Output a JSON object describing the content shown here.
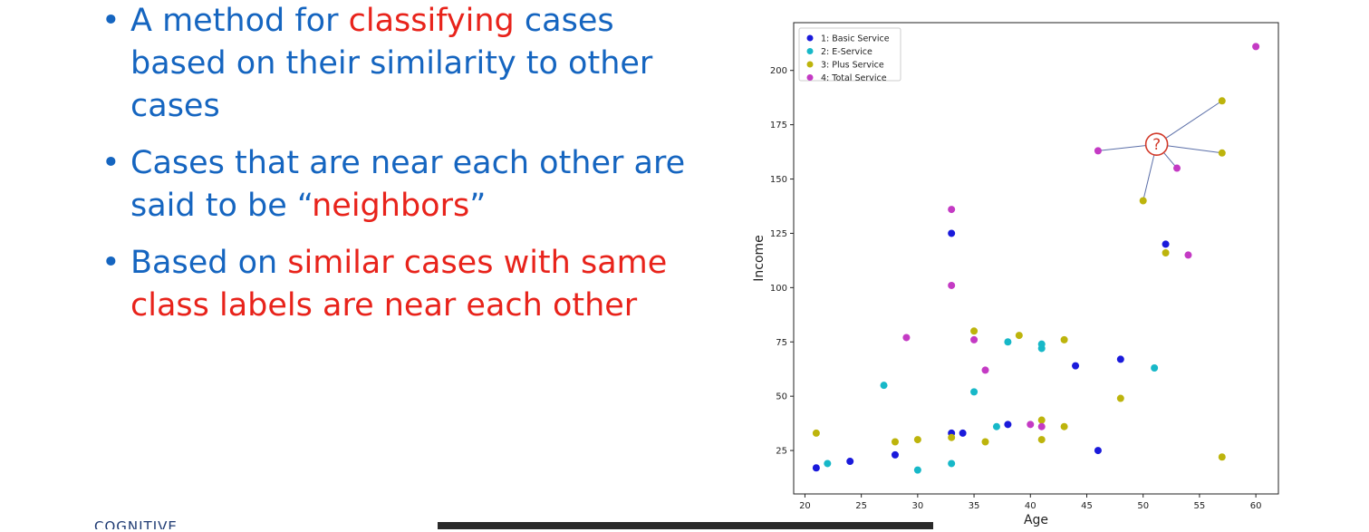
{
  "bullets": [
    {
      "parts": [
        {
          "t": "A method for ",
          "red": false
        },
        {
          "t": "classifying",
          "red": true
        },
        {
          "t": " cases based on their similarity to other cases",
          "red": false
        }
      ]
    },
    {
      "parts": [
        {
          "t": "Cases that are near each other are said to be “",
          "red": false
        },
        {
          "t": "neighbors",
          "red": true
        },
        {
          "t": "”",
          "red": false
        }
      ]
    },
    {
      "parts": [
        {
          "t": "Based on ",
          "red": false
        },
        {
          "t": "similar cases with same class labels are near each other",
          "red": true
        }
      ]
    }
  ],
  "bullet_symbol": "•",
  "logo_text": "COGNITIVE",
  "chart_data": {
    "type": "scatter",
    "xlabel": "Age",
    "ylabel": "Income",
    "xlim": [
      19,
      62
    ],
    "ylim": [
      5,
      222
    ],
    "xticks": [
      20,
      25,
      30,
      35,
      40,
      45,
      50,
      55,
      60
    ],
    "yticks": [
      25,
      50,
      75,
      100,
      125,
      150,
      175,
      200
    ],
    "legend_position": "top-left",
    "series": [
      {
        "name": "1: Basic Service",
        "color": "#1a1adb",
        "points": [
          [
            21,
            17
          ],
          [
            24,
            20
          ],
          [
            28,
            23
          ],
          [
            33,
            33
          ],
          [
            34,
            33
          ],
          [
            38,
            37
          ],
          [
            33,
            125
          ],
          [
            44,
            64
          ],
          [
            46,
            25
          ],
          [
            48,
            67
          ],
          [
            52,
            120
          ]
        ]
      },
      {
        "name": "2: E-Service",
        "color": "#17b8c8",
        "points": [
          [
            22,
            19
          ],
          [
            27,
            55
          ],
          [
            30,
            16
          ],
          [
            33,
            19
          ],
          [
            35,
            52
          ],
          [
            37,
            36
          ],
          [
            38,
            75
          ],
          [
            41,
            72
          ],
          [
            41,
            74
          ],
          [
            51,
            63
          ]
        ]
      },
      {
        "name": "3: Plus Service",
        "color": "#bdb40c",
        "points": [
          [
            21,
            33
          ],
          [
            28,
            29
          ],
          [
            30,
            30
          ],
          [
            33,
            31
          ],
          [
            35,
            80
          ],
          [
            36,
            29
          ],
          [
            39,
            78
          ],
          [
            41,
            30
          ],
          [
            41,
            39
          ],
          [
            43,
            36
          ],
          [
            43,
            76
          ],
          [
            48,
            49
          ],
          [
            50,
            140
          ],
          [
            52,
            116
          ],
          [
            57,
            162
          ],
          [
            57,
            186
          ],
          [
            57,
            22
          ]
        ]
      },
      {
        "name": "4: Total Service",
        "color": "#c43ac4",
        "points": [
          [
            29,
            77
          ],
          [
            33,
            136
          ],
          [
            33,
            101
          ],
          [
            35,
            76
          ],
          [
            36,
            62
          ],
          [
            40,
            37
          ],
          [
            41,
            36
          ],
          [
            46,
            163
          ],
          [
            53,
            155
          ],
          [
            54,
            115
          ],
          [
            60,
            211
          ]
        ]
      }
    ],
    "query_point": {
      "label": "?",
      "x": 51.2,
      "y": 166,
      "neighbors": [
        [
          57,
          186
        ],
        [
          57,
          162
        ],
        [
          53,
          155
        ],
        [
          50,
          140
        ],
        [
          46,
          163
        ]
      ]
    }
  }
}
